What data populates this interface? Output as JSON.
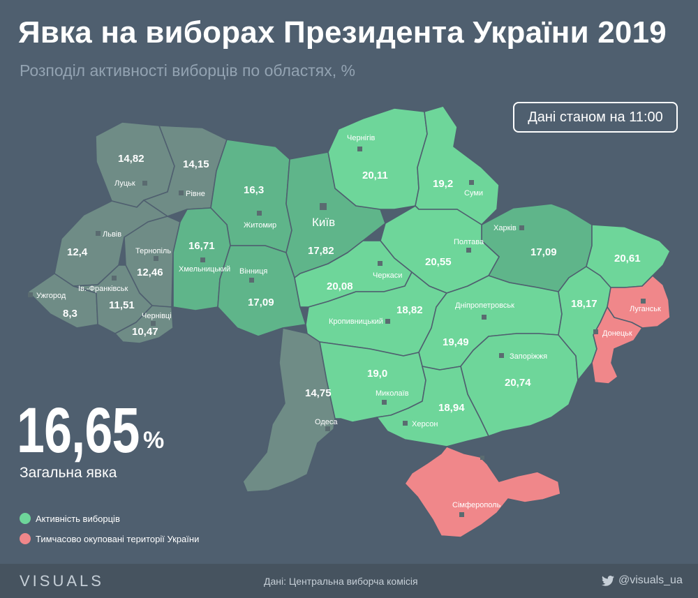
{
  "header": {
    "title": "Явка на виборах Президента України 2019",
    "subtitle": "Розподіл активності виборців по областях, %",
    "time_note": "Дані станом на 11:00"
  },
  "summary": {
    "turnout_value": "16,65",
    "turnout_unit": "%",
    "caption": "Загальна явка"
  },
  "legend": [
    {
      "label": "Активність виборців",
      "color": "#6ed69a"
    },
    {
      "label": "Тимчасово окуповані території України",
      "color": "#f0878a"
    }
  ],
  "colors": {
    "background": "#4f5f6f",
    "low_turnout": "#6f8c86",
    "mid_turnout": "#5fb58a",
    "high_turnout": "#6ed69a",
    "occupied": "#f0878a",
    "city_marker": "#5a6b70"
  },
  "regions": [
    {
      "city": "Луцьк",
      "value": "14,82"
    },
    {
      "city": "Рівне",
      "value": "14,15"
    },
    {
      "city": "Житомир",
      "value": "16,3"
    },
    {
      "city": "Київ",
      "value": "17,82"
    },
    {
      "city": "Чернігів",
      "value": "20,11"
    },
    {
      "city": "Суми",
      "value": "19,2"
    },
    {
      "city": "Львів",
      "value": "12,4"
    },
    {
      "city": "Тернопіль",
      "value": "12,46"
    },
    {
      "city": "Хмельницький",
      "value": "16,71"
    },
    {
      "city": "Вінниця",
      "value": "17,09"
    },
    {
      "city": "Черкаси",
      "value": "20,08"
    },
    {
      "city": "Полтава",
      "value": "20,55"
    },
    {
      "city": "Харків",
      "value": "17,09"
    },
    {
      "city": "Ужгород",
      "value": "8,3"
    },
    {
      "city": "Ів.-Франківськ",
      "value": "11,51"
    },
    {
      "city": "Чернівці",
      "value": "10,47"
    },
    {
      "city": "Кропивницький",
      "value": "18,82"
    },
    {
      "city": "Дніпропетровськ",
      "value": "19,49"
    },
    {
      "city": "Запоріжжя",
      "value": "20,74"
    },
    {
      "city": "Миколаїв",
      "value": "19,0"
    },
    {
      "city": "Херсон",
      "value": "18,94"
    },
    {
      "city": "Одеса",
      "value": "14,75"
    },
    {
      "city": "Донецьк",
      "value": "18,17"
    },
    {
      "city": "Луганськ",
      "value": "20,61"
    },
    {
      "city": "Сімферополь",
      "value": ""
    }
  ],
  "footer": {
    "brand": "VISUALS",
    "source": "Дані: Центральна виборча комісія",
    "social": "@visuals_ua",
    "social_icon": "twitter-icon"
  }
}
